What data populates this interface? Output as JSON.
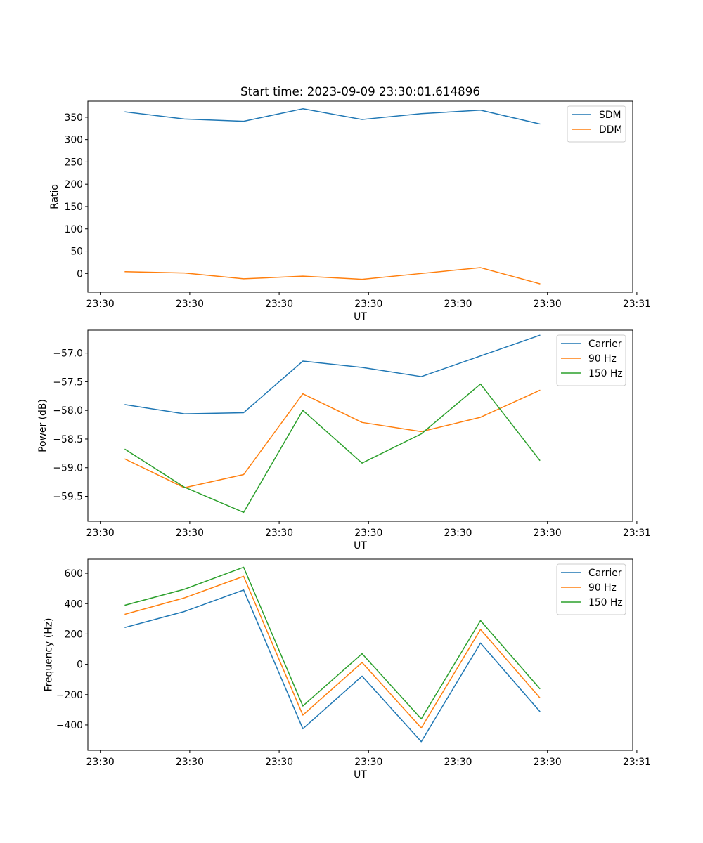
{
  "figure_title": "Start time: 2023-09-09 23:30:01.614896",
  "colors": {
    "series1": "#1f77b4",
    "series2": "#ff7f0e",
    "series3": "#2ca02c",
    "axes": "#000000",
    "legend_border": "#cccccc",
    "background": "#ffffff"
  },
  "chart_data": [
    {
      "type": "line",
      "title": "Start time: 2023-09-09 23:30:01.614896",
      "xlabel": "UT",
      "ylabel": "Ratio",
      "x": [
        1,
        2,
        3,
        4,
        5,
        6,
        7,
        8
      ],
      "xlim": [
        0.37,
        9.57
      ],
      "ylim": [
        -42,
        386
      ],
      "xticks": [
        0.58,
        2.09,
        3.6,
        5.11,
        6.62,
        8.13,
        9.64
      ],
      "xtick_labels": [
        "23:30",
        "23:30",
        "23:30",
        "23:30",
        "23:30",
        "23:30",
        "23:31"
      ],
      "yticks": [
        0,
        50,
        100,
        150,
        200,
        250,
        300,
        350
      ],
      "ytick_labels": [
        "0",
        "50",
        "100",
        "150",
        "200",
        "250",
        "300",
        "350"
      ],
      "legend_position": "top-right",
      "series": [
        {
          "name": "SDM",
          "color": "#1f77b4",
          "values": [
            362,
            346,
            341,
            369,
            345,
            358,
            366,
            335
          ]
        },
        {
          "name": "DDM",
          "color": "#ff7f0e",
          "values": [
            4,
            1,
            -12,
            -6,
            -13,
            0,
            13,
            -23
          ]
        }
      ]
    },
    {
      "type": "line",
      "title": "",
      "xlabel": "UT",
      "ylabel": "Power (dB)",
      "x": [
        1,
        2,
        3,
        4,
        5,
        6,
        7,
        8
      ],
      "xlim": [
        0.37,
        9.57
      ],
      "ylim": [
        -59.935,
        -56.6
      ],
      "xticks": [
        0.58,
        2.09,
        3.6,
        5.11,
        6.62,
        8.13,
        9.64
      ],
      "xtick_labels": [
        "23:30",
        "23:30",
        "23:30",
        "23:30",
        "23:30",
        "23:30",
        "23:31"
      ],
      "yticks": [
        -59.5,
        -59.0,
        -58.5,
        -58.0,
        -57.5,
        -57.0
      ],
      "ytick_labels": [
        "−59.5",
        "−59.0",
        "−58.5",
        "−58.0",
        "−57.5",
        "−57.0"
      ],
      "legend_position": "top-right",
      "series": [
        {
          "name": "Carrier",
          "color": "#1f77b4",
          "values": [
            -57.9,
            -58.06,
            -58.04,
            -57.14,
            -57.25,
            -57.41,
            -57.05,
            -56.69
          ]
        },
        {
          "name": "90 Hz",
          "color": "#ff7f0e",
          "values": [
            -58.85,
            -59.35,
            -59.12,
            -57.71,
            -58.21,
            -58.37,
            -58.12,
            -57.65
          ]
        },
        {
          "name": "150 Hz",
          "color": "#2ca02c",
          "values": [
            -58.68,
            -59.34,
            -59.78,
            -58.0,
            -58.92,
            -58.41,
            -57.54,
            -58.87
          ]
        }
      ]
    },
    {
      "type": "line",
      "title": "",
      "xlabel": "UT",
      "ylabel": "Frequency (Hz)",
      "x": [
        1,
        2,
        3,
        4,
        5,
        6,
        7,
        8
      ],
      "xlim": [
        0.37,
        9.57
      ],
      "ylim": [
        -567,
        693
      ],
      "xticks": [
        0.58,
        2.09,
        3.6,
        5.11,
        6.62,
        8.13,
        9.64
      ],
      "xtick_labels": [
        "23:30",
        "23:30",
        "23:30",
        "23:30",
        "23:30",
        "23:30",
        "23:31"
      ],
      "yticks": [
        -400,
        -200,
        0,
        200,
        400,
        600
      ],
      "ytick_labels": [
        "−400",
        "−200",
        "0",
        "200",
        "400",
        "600"
      ],
      "legend_position": "top-right",
      "series": [
        {
          "name": "Carrier",
          "color": "#1f77b4",
          "values": [
            243,
            348,
            490,
            -425,
            -78,
            -510,
            140,
            -310
          ]
        },
        {
          "name": "90 Hz",
          "color": "#ff7f0e",
          "values": [
            330,
            438,
            580,
            -335,
            12,
            -420,
            230,
            -220
          ]
        },
        {
          "name": "150 Hz",
          "color": "#2ca02c",
          "values": [
            390,
            495,
            640,
            -275,
            70,
            -360,
            288,
            -160
          ]
        }
      ]
    }
  ]
}
